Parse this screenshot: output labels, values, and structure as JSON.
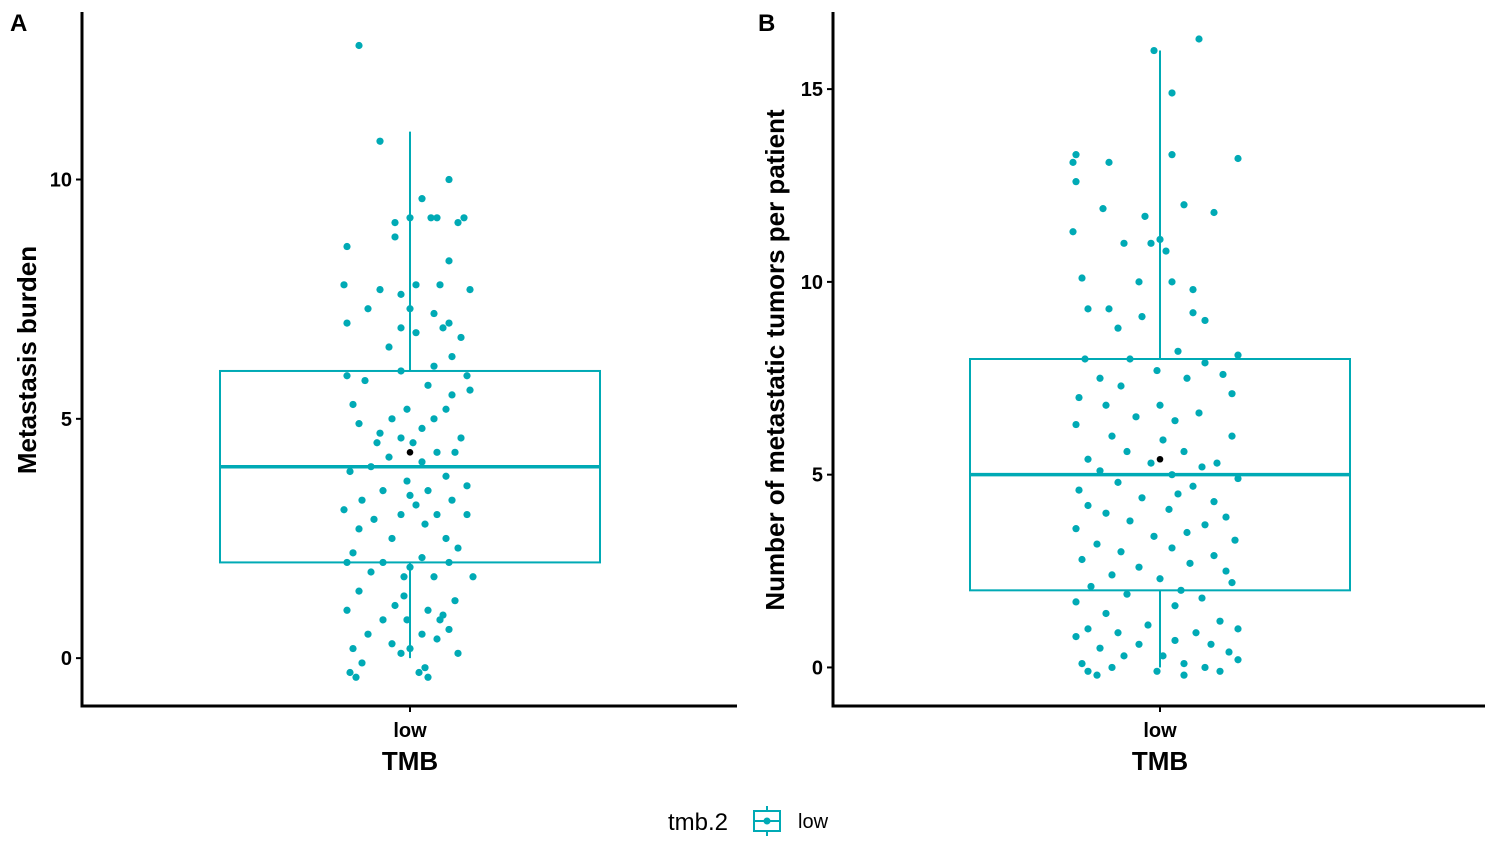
{
  "accent_color": "#00AAB5",
  "mean_color": "#000000",
  "legend": {
    "title": "tmb.2",
    "items": [
      {
        "label": "low",
        "color": "#00AAB5"
      }
    ],
    "position": "bottom"
  },
  "chart_data": [
    {
      "tag": "A",
      "type": "box",
      "categories": [
        "low"
      ],
      "xlabel": "TMB",
      "ylabel": "Metastasis burden",
      "ylim": [
        -1,
        13.5
      ],
      "yticks": [
        0,
        5,
        10
      ],
      "grid": false,
      "box": {
        "q1": 2,
        "median": 4,
        "q3": 6,
        "whisker_low": 0,
        "whisker_high": 11,
        "mean": 4.3
      },
      "points": [
        [
          -0.17,
          12.8
        ],
        [
          -0.1,
          10.8
        ],
        [
          0.13,
          10.0
        ],
        [
          0.09,
          9.2
        ],
        [
          0.04,
          9.6
        ],
        [
          0.07,
          9.2
        ],
        [
          0.16,
          9.1
        ],
        [
          0.18,
          9.2
        ],
        [
          -0.05,
          9.1
        ],
        [
          0.0,
          9.2
        ],
        [
          -0.05,
          8.8
        ],
        [
          -0.21,
          8.6
        ],
        [
          0.13,
          8.3
        ],
        [
          0.2,
          7.7
        ],
        [
          -0.22,
          7.8
        ],
        [
          -0.1,
          7.7
        ],
        [
          -0.03,
          7.6
        ],
        [
          0.02,
          7.8
        ],
        [
          0.1,
          7.8
        ],
        [
          -0.14,
          7.3
        ],
        [
          0.0,
          7.3
        ],
        [
          0.13,
          7.0
        ],
        [
          -0.21,
          7.0
        ],
        [
          0.11,
          6.9
        ],
        [
          -0.03,
          6.9
        ],
        [
          0.02,
          6.8
        ],
        [
          -0.07,
          6.5
        ],
        [
          0.14,
          6.3
        ],
        [
          0.08,
          6.1
        ],
        [
          -0.03,
          6.0
        ],
        [
          0.19,
          5.9
        ],
        [
          -0.15,
          5.8
        ],
        [
          0.06,
          5.7
        ],
        [
          0.2,
          5.6
        ],
        [
          0.14,
          5.5
        ],
        [
          -0.19,
          5.3
        ],
        [
          -0.01,
          5.2
        ],
        [
          0.08,
          5.0
        ],
        [
          0.12,
          5.2
        ],
        [
          -0.06,
          5.0
        ],
        [
          -0.17,
          4.9
        ],
        [
          0.04,
          4.8
        ],
        [
          -0.1,
          4.7
        ],
        [
          0.17,
          4.6
        ],
        [
          0.01,
          4.5
        ],
        [
          -0.03,
          4.6
        ],
        [
          0.09,
          4.3
        ],
        [
          -0.07,
          4.2
        ],
        [
          0.15,
          4.3
        ],
        [
          -0.13,
          4.0
        ],
        [
          0.04,
          4.1
        ],
        [
          -0.2,
          3.9
        ],
        [
          0.12,
          3.8
        ],
        [
          -0.01,
          3.7
        ],
        [
          0.19,
          3.6
        ],
        [
          0.06,
          3.5
        ],
        [
          -0.09,
          3.5
        ],
        [
          -0.16,
          3.3
        ],
        [
          0.02,
          3.2
        ],
        [
          0.14,
          3.3
        ],
        [
          -0.22,
          3.1
        ],
        [
          -0.03,
          3.0
        ],
        [
          0.09,
          3.0
        ],
        [
          0.19,
          3.0
        ],
        [
          -0.12,
          2.9
        ],
        [
          0.05,
          2.8
        ],
        [
          -0.17,
          2.7
        ],
        [
          0.12,
          2.5
        ],
        [
          -0.06,
          2.5
        ],
        [
          0.16,
          2.3
        ],
        [
          -0.19,
          2.2
        ],
        [
          0.04,
          2.1
        ],
        [
          -0.09,
          2.0
        ],
        [
          -0.21,
          2.0
        ],
        [
          0.13,
          2.0
        ],
        [
          0.0,
          1.9
        ],
        [
          -0.13,
          1.8
        ],
        [
          0.21,
          1.7
        ],
        [
          -0.02,
          1.7
        ],
        [
          0.08,
          1.7
        ],
        [
          -0.17,
          1.4
        ],
        [
          0.15,
          1.2
        ],
        [
          -0.05,
          1.1
        ],
        [
          0.06,
          1.0
        ],
        [
          -0.21,
          1.0
        ],
        [
          0.11,
          0.9
        ],
        [
          -0.09,
          0.8
        ],
        [
          -0.01,
          0.8
        ],
        [
          0.13,
          0.6
        ],
        [
          -0.14,
          0.5
        ],
        [
          0.04,
          0.5
        ],
        [
          -0.06,
          0.3
        ],
        [
          0.09,
          0.4
        ],
        [
          -0.19,
          0.2
        ],
        [
          0.0,
          0.2
        ],
        [
          0.16,
          0.1
        ],
        [
          -0.03,
          0.1
        ],
        [
          -0.16,
          -0.1
        ],
        [
          0.05,
          -0.2
        ],
        [
          -0.2,
          -0.3
        ],
        [
          0.03,
          -0.3
        ],
        [
          -0.18,
          -0.4
        ],
        [
          0.06,
          -0.4
        ],
        [
          0.1,
          0.8
        ],
        [
          -0.11,
          4.5
        ],
        [
          0.17,
          6.7
        ],
        [
          -0.21,
          5.9
        ],
        [
          0.0,
          3.4
        ],
        [
          -0.02,
          1.3
        ],
        [
          0.08,
          7.2
        ]
      ]
    },
    {
      "tag": "B",
      "type": "box",
      "categories": [
        "low"
      ],
      "xlabel": "TMB",
      "ylabel": "Number of metastatic tumors per patient",
      "ylim": [
        -1,
        17
      ],
      "yticks": [
        0,
        5,
        10,
        15
      ],
      "grid": false,
      "box": {
        "q1": 2,
        "median": 5,
        "q3": 8,
        "whisker_low": 0,
        "whisker_high": 16,
        "mean": 5.4
      },
      "points": [
        [
          0.13,
          16.3
        ],
        [
          -0.02,
          16.0
        ],
        [
          0.04,
          14.9
        ],
        [
          -0.28,
          13.3
        ],
        [
          -0.29,
          13.1
        ],
        [
          -0.17,
          13.1
        ],
        [
          0.04,
          13.3
        ],
        [
          0.26,
          13.2
        ],
        [
          -0.28,
          12.6
        ],
        [
          -0.19,
          11.9
        ],
        [
          0.08,
          12.0
        ],
        [
          0.18,
          11.8
        ],
        [
          -0.05,
          11.7
        ],
        [
          0.0,
          11.1
        ],
        [
          -0.12,
          11.0
        ],
        [
          -0.03,
          11.0
        ],
        [
          0.02,
          10.8
        ],
        [
          -0.29,
          11.3
        ],
        [
          -0.26,
          10.1
        ],
        [
          -0.07,
          10.0
        ],
        [
          0.04,
          10.0
        ],
        [
          0.11,
          9.8
        ],
        [
          -0.24,
          9.3
        ],
        [
          -0.17,
          9.3
        ],
        [
          0.11,
          9.2
        ],
        [
          0.15,
          9.0
        ],
        [
          -0.06,
          9.1
        ],
        [
          -0.14,
          8.8
        ],
        [
          0.06,
          8.2
        ],
        [
          -0.25,
          8.0
        ],
        [
          0.26,
          8.1
        ],
        [
          -0.1,
          8.0
        ],
        [
          0.15,
          7.9
        ],
        [
          -0.01,
          7.7
        ],
        [
          0.21,
          7.6
        ],
        [
          -0.2,
          7.5
        ],
        [
          0.09,
          7.5
        ],
        [
          -0.13,
          7.3
        ],
        [
          0.24,
          7.1
        ],
        [
          -0.27,
          7.0
        ],
        [
          0.0,
          6.8
        ],
        [
          -0.18,
          6.8
        ],
        [
          0.13,
          6.6
        ],
        [
          -0.08,
          6.5
        ],
        [
          0.05,
          6.4
        ],
        [
          -0.28,
          6.3
        ],
        [
          0.24,
          6.0
        ],
        [
          -0.16,
          6.0
        ],
        [
          0.01,
          5.9
        ],
        [
          0.08,
          5.6
        ],
        [
          -0.11,
          5.6
        ],
        [
          -0.24,
          5.4
        ],
        [
          0.19,
          5.3
        ],
        [
          -0.03,
          5.3
        ],
        [
          0.14,
          5.2
        ],
        [
          -0.2,
          5.1
        ],
        [
          0.04,
          5.0
        ],
        [
          0.26,
          4.9
        ],
        [
          -0.14,
          4.8
        ],
        [
          0.11,
          4.7
        ],
        [
          -0.27,
          4.6
        ],
        [
          0.06,
          4.5
        ],
        [
          -0.06,
          4.4
        ],
        [
          0.18,
          4.3
        ],
        [
          -0.24,
          4.2
        ],
        [
          0.03,
          4.1
        ],
        [
          -0.18,
          4.0
        ],
        [
          0.22,
          3.9
        ],
        [
          -0.1,
          3.8
        ],
        [
          0.15,
          3.7
        ],
        [
          -0.28,
          3.6
        ],
        [
          0.09,
          3.5
        ],
        [
          -0.02,
          3.4
        ],
        [
          0.25,
          3.3
        ],
        [
          -0.21,
          3.2
        ],
        [
          0.04,
          3.1
        ],
        [
          -0.13,
          3.0
        ],
        [
          0.18,
          2.9
        ],
        [
          -0.26,
          2.8
        ],
        [
          0.1,
          2.7
        ],
        [
          -0.07,
          2.6
        ],
        [
          0.22,
          2.5
        ],
        [
          -0.16,
          2.4
        ],
        [
          0.0,
          2.3
        ],
        [
          0.24,
          2.2
        ],
        [
          -0.23,
          2.1
        ],
        [
          0.07,
          2.0
        ],
        [
          -0.11,
          1.9
        ],
        [
          0.14,
          1.8
        ],
        [
          -0.28,
          1.7
        ],
        [
          0.05,
          1.6
        ],
        [
          -0.18,
          1.4
        ],
        [
          0.2,
          1.2
        ],
        [
          -0.04,
          1.1
        ],
        [
          -0.24,
          1.0
        ],
        [
          0.26,
          1.0
        ],
        [
          0.12,
          0.9
        ],
        [
          -0.14,
          0.9
        ],
        [
          -0.28,
          0.8
        ],
        [
          0.05,
          0.7
        ],
        [
          -0.07,
          0.6
        ],
        [
          0.17,
          0.6
        ],
        [
          -0.2,
          0.5
        ],
        [
          0.23,
          0.4
        ],
        [
          -0.12,
          0.3
        ],
        [
          0.01,
          0.3
        ],
        [
          0.26,
          0.2
        ],
        [
          -0.26,
          0.1
        ],
        [
          0.08,
          0.1
        ],
        [
          -0.16,
          0.0
        ],
        [
          0.15,
          0.0
        ],
        [
          -0.01,
          -0.1
        ],
        [
          0.2,
          -0.1
        ],
        [
          -0.24,
          -0.1
        ],
        [
          0.08,
          -0.2
        ],
        [
          -0.21,
          -0.2
        ]
      ]
    }
  ]
}
